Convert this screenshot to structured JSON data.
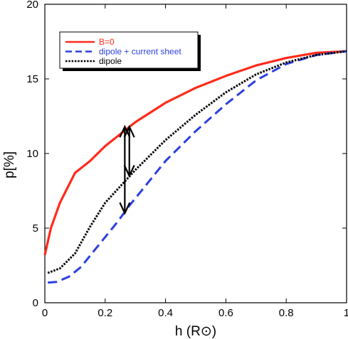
{
  "chart_data": {
    "type": "line",
    "xlabel": "h (R⊙)",
    "ylabel": "p[%]",
    "xlim": [
      0,
      1
    ],
    "ylim": [
      0,
      20
    ],
    "x_ticks": [
      "0",
      "0.2",
      "0.4",
      "0.6",
      "0.8",
      "1"
    ],
    "y_ticks": [
      "0",
      "5",
      "10",
      "15",
      "20"
    ],
    "grid": false,
    "legend_position": "top-left",
    "series": [
      {
        "name": "B=0",
        "color": "#ff2a1a",
        "dash": "solid",
        "x": [
          0,
          0.02,
          0.05,
          0.1,
          0.15,
          0.2,
          0.25,
          0.3,
          0.4,
          0.5,
          0.6,
          0.7,
          0.8,
          0.9,
          1.0
        ],
        "y": [
          3.2,
          5.0,
          6.7,
          8.7,
          9.5,
          10.5,
          11.3,
          12.1,
          13.4,
          14.4,
          15.2,
          15.9,
          16.4,
          16.75,
          16.85
        ]
      },
      {
        "name": "dipole + current sheet",
        "color": "#2b3fe0",
        "dash": "dashed",
        "x": [
          0.01,
          0.04,
          0.08,
          0.12,
          0.16,
          0.2,
          0.24,
          0.28,
          0.32,
          0.4,
          0.5,
          0.6,
          0.7,
          0.8,
          0.9,
          1.0
        ],
        "y": [
          1.35,
          1.4,
          1.75,
          2.4,
          3.4,
          4.4,
          5.4,
          6.5,
          7.5,
          9.5,
          11.5,
          13.3,
          14.9,
          16.0,
          16.6,
          16.85
        ]
      },
      {
        "name": "dipole",
        "color": "#000000",
        "dash": "dotted",
        "x": [
          0.01,
          0.05,
          0.1,
          0.15,
          0.2,
          0.25,
          0.3,
          0.4,
          0.5,
          0.6,
          0.7,
          0.8,
          0.9,
          1.0
        ],
        "y": [
          2.0,
          2.3,
          3.3,
          5.1,
          6.7,
          7.8,
          8.9,
          10.9,
          12.6,
          14.1,
          15.3,
          16.1,
          16.6,
          16.85
        ]
      }
    ],
    "annotations": [
      {
        "type": "double-arrow",
        "x": 0.265,
        "y_from": 6.0,
        "y_to": 11.8
      },
      {
        "type": "double-arrow",
        "x": 0.28,
        "y_from": 8.5,
        "y_to": 11.8
      }
    ]
  }
}
